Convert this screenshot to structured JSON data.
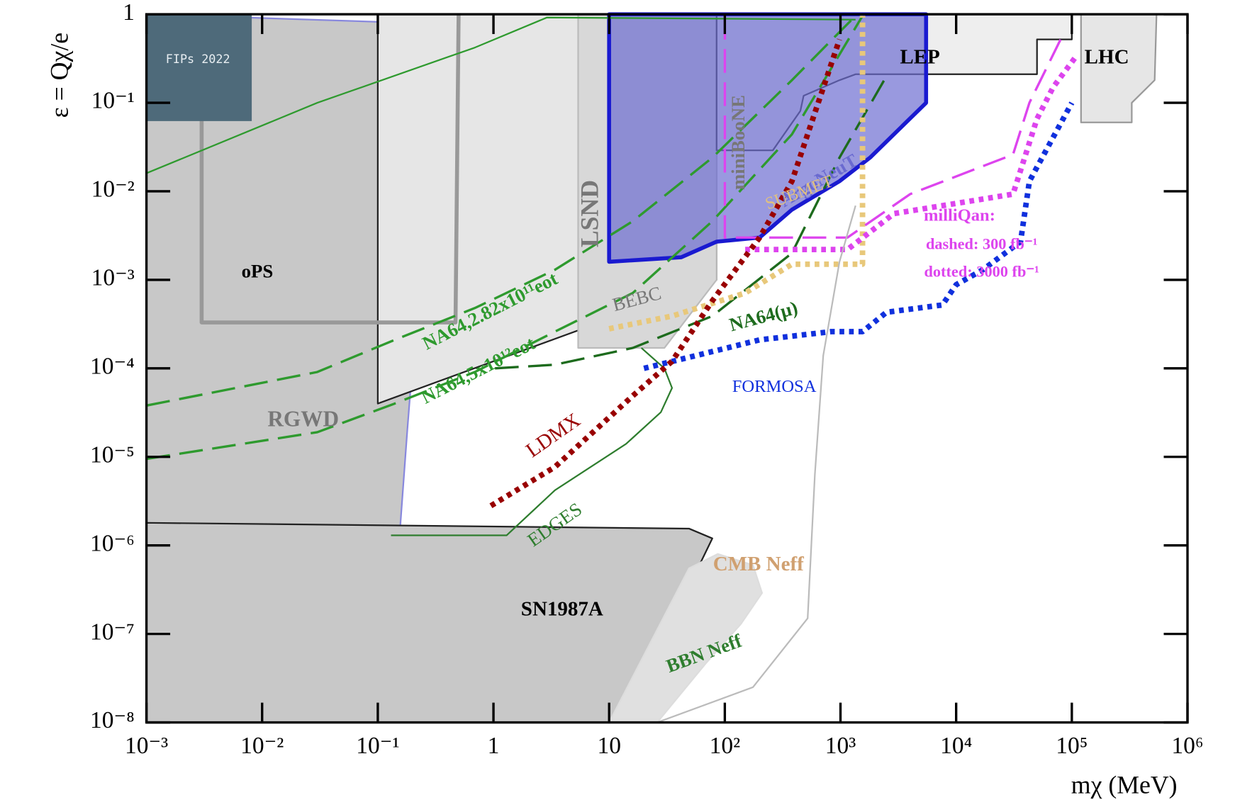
{
  "chart_data": {
    "type": "line",
    "log_x": true,
    "log_y": true,
    "x_label": "mχ (MeV)",
    "y_label": "ε = Qχ/e",
    "logo": "FIPs 2022",
    "xlim": [
      0.001,
      1000000
    ],
    "ylim": [
      1e-08,
      1
    ],
    "xticks": [
      {
        "value": 0.001,
        "label": "10⁻³"
      },
      {
        "value": 0.01,
        "label": "10⁻²"
      },
      {
        "value": 0.1,
        "label": "10⁻¹"
      },
      1,
      10,
      {
        "value": 100,
        "label": "10²"
      },
      {
        "value": 1000,
        "label": "10³"
      },
      {
        "value": 10000,
        "label": "10⁴"
      },
      {
        "value": 100000,
        "label": "10⁵"
      },
      {
        "value": 1000000,
        "label": "10⁶"
      }
    ],
    "yticks": [
      {
        "value": 1e-08,
        "label": "10⁻⁸"
      },
      {
        "value": 1e-07,
        "label": "10⁻⁷"
      },
      {
        "value": 1e-06,
        "label": "10⁻⁶"
      },
      {
        "value": 1e-05,
        "label": "10⁻⁵"
      },
      {
        "value": 0.0001,
        "label": "10⁻⁴"
      },
      {
        "value": 0.001,
        "label": "10⁻³"
      },
      {
        "value": 0.01,
        "label": "10⁻²"
      },
      {
        "value": 0.1,
        "label": "10⁻¹"
      },
      1
    ],
    "series": [
      {
        "style": "solid",
        "color": "#8888dd",
        "fill": "#c8c8c8",
        "x": [
          0.001,
          0.34,
          0.18,
          0.15,
          0.089,
          0.001
        ],
        "values": [
          1,
          0.78,
          2e-05,
          8e-07,
          1e-08,
          1e-08
        ]
      },
      {
        "style": "solid",
        "color": "#222222",
        "fill": "#e6e6e6",
        "x": [
          0.1,
          0.1,
          85,
          85
        ],
        "values": [
          1,
          4e-05,
          0.001,
          1
        ]
      },
      {
        "style": "solid",
        "color": "#bbbbbb",
        "fill": "#d8d8d8",
        "x": [
          5.4,
          5.4,
          30,
          85,
          85
        ],
        "values": [
          1,
          0.00017,
          0.00017,
          0.001,
          1
        ]
      },
      {
        "style": "solid",
        "color": "#222222",
        "fill": "#c8c8c8",
        "x": [
          0.001,
          49,
          78,
          58,
          42,
          26,
          10,
          0.001
        ],
        "values": [
          1.8e-06,
          1.55e-06,
          1.2e-06,
          5.4e-07,
          1.5e-07,
          3.6e-08,
          1e-08,
          1e-08
        ]
      },
      {
        "style": "solid",
        "color": "#dddddd",
        "fill": "#e0e0e0",
        "x": [
          10,
          49,
          87,
          175,
          210,
          138,
          68,
          26
        ],
        "values": [
          1e-08,
          5.5e-07,
          8e-07,
          6e-07,
          2.9e-07,
          1.3e-07,
          4.6e-08,
          1e-08
        ]
      },
      {
        "style": "solid",
        "color": "#999999",
        "fill": "#e6e6e6",
        "x": [
          120000,
          540000,
          520000,
          330000,
          330000,
          120000
        ],
        "values": [
          1,
          1,
          0.18,
          0.1,
          0.06,
          0.06
        ]
      },
      {
        "style": "solid",
        "color": "#222222",
        "fill": "#eeeeee",
        "x": [
          85,
          85,
          260,
          450,
          480,
          980,
          1350,
          50000,
          50000,
          100000,
          100000
        ],
        "values": [
          1,
          0.029,
          0.029,
          0.081,
          0.12,
          0.18,
          0.21,
          0.21,
          0.52,
          0.52,
          1
        ]
      },
      {
        "style": "thick",
        "color": "#1a1ad0",
        "fill": "rgba(110,110,210,0.7)",
        "x": [
          10,
          10,
          42,
          85,
          200,
          380,
          980,
          1800,
          5500,
          5500
        ],
        "values": [
          1,
          0.0016,
          0.0018,
          0.0027,
          0.003,
          0.0062,
          0.013,
          0.024,
          0.1,
          1
        ]
      },
      {
        "style": "thick",
        "color": "#999999",
        "x": [
          0.003,
          0.003,
          0.47,
          0.5
        ],
        "values": [
          0.066,
          0.00033,
          0.00033,
          1
        ]
      },
      {
        "style": "solid",
        "color": "#2e9a2e",
        "x": [
          0.001,
          0.03,
          0.69,
          2.9,
          1350
        ],
        "values": [
          0.016,
          0.1,
          0.42,
          0.92,
          0.87
        ]
      },
      {
        "style": "dashed",
        "color": "#2e9a2e",
        "x": [
          0.001,
          0.03,
          0.14,
          0.69,
          3.4,
          16,
          78,
          380,
          1350
        ],
        "values": [
          3.8e-05,
          9.1e-05,
          0.00021,
          0.00048,
          0.0013,
          0.0046,
          0.024,
          0.18,
          0.96
        ]
      },
      {
        "style": "dashed",
        "color": "#2e9a2e",
        "x": [
          0.001,
          0.03,
          0.14,
          0.69,
          3.4,
          16,
          78,
          380,
          1550
        ],
        "values": [
          9.5e-06,
          1.9e-05,
          4e-05,
          9.1e-05,
          0.00026,
          0.00071,
          0.0046,
          0.044,
          0.96
        ]
      },
      {
        "style": "dashed",
        "color": "#1d6b1d",
        "x": [
          1.03,
          3.4,
          16,
          78,
          380,
          980,
          2500
        ],
        "values": [
          0.0001,
          0.00011,
          0.00017,
          0.00039,
          0.002,
          0.024,
          0.2
        ]
      },
      {
        "style": "solid",
        "color": "#2e7d2e",
        "x": [
          0.13,
          1.3,
          3.4,
          14,
          28,
          35,
          30,
          19
        ],
        "values": [
          1.3e-06,
          1.3e-06,
          4.2e-06,
          1.4e-05,
          3.2e-05,
          6e-05,
          0.0001,
          0.00017
        ]
      },
      {
        "style": "dotted",
        "color": "#e8c87a",
        "x": [
          10,
          35,
          150,
          380,
          1550,
          1550
        ],
        "values": [
          0.00028,
          0.00039,
          0.00071,
          0.0015,
          0.0015,
          0.96
        ]
      },
      {
        "style": "dashed",
        "color": "#dd44ee",
        "x": [
          100,
          100,
          125
        ],
        "values": [
          0.96,
          0.003,
          0.003
        ]
      },
      {
        "style": "dashed",
        "color": "#dd44ee",
        "x": [
          125,
          1150,
          4000,
          31000,
          43000,
          80000
        ],
        "values": [
          0.003,
          0.003,
          0.0093,
          0.026,
          0.1,
          0.52
        ]
      },
      {
        "style": "dotted",
        "color": "#dd44ee",
        "x": [
          150,
          1150,
          2900,
          31000,
          50000,
          69000,
          110000
        ],
        "values": [
          0.0022,
          0.0022,
          0.0056,
          0.0093,
          0.066,
          0.15,
          0.34
        ]
      },
      {
        "style": "dotted",
        "color": "#1030dd",
        "x": [
          20,
          57,
          200,
          830,
          1550,
          2500,
          7600,
          10000,
          17000,
          36000,
          43000,
          100000
        ],
        "values": [
          0.0001,
          0.00014,
          0.00021,
          0.00026,
          0.00026,
          0.00043,
          0.00052,
          0.00088,
          0.0013,
          0.0027,
          0.013,
          0.1
        ]
      },
      {
        "style": "dotted",
        "color": "#990000",
        "x": [
          0.95,
          3.4,
          16,
          35,
          78,
          200,
          380,
          980
        ],
        "values": [
          2.8e-06,
          7.7e-06,
          4.9e-05,
          0.00012,
          0.00058,
          0.003,
          0.013,
          0.52
        ]
      },
      {
        "style": "solid",
        "color": "#bbbbbb",
        "x": [
          1350,
          980,
          710,
          600,
          520,
          175,
          26
        ],
        "values": [
          0.0069,
          0.0016,
          0.00014,
          6.3e-06,
          1.5e-07,
          2.5e-08,
          1e-08
        ]
      }
    ],
    "annotations": [
      "oPS",
      "RGWD",
      "LSND",
      "BEBC",
      "miniBooNE",
      "ArgoNeuT",
      "SUBMET",
      "LEP",
      "LHC",
      "milliQan:",
      "dashed: 300 fb⁻¹",
      "dotted: 3000 fb⁻¹",
      "NA64,2.82x10¹¹eot",
      "NA64,5x10¹²eot",
      "NA64(μ)",
      "LDMX",
      "FORMOSA",
      "EDGES",
      "SN1987A",
      "CMB Neff",
      "BBN Neff"
    ]
  }
}
